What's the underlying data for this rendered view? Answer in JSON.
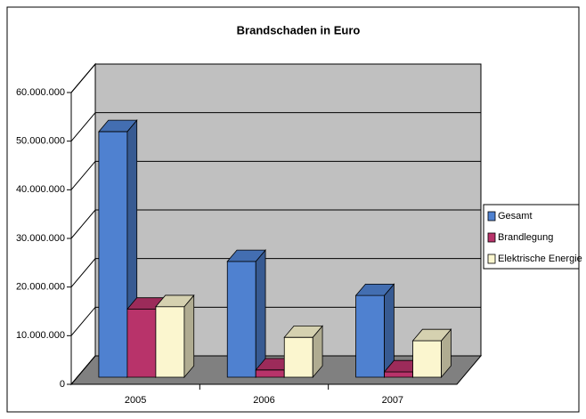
{
  "chart_data": {
    "type": "bar3d",
    "title": "Brandschaden in Euro",
    "categories": [
      "2005",
      "2006",
      "2007"
    ],
    "series": [
      {
        "name": "Gesamt",
        "color": "#4f81d0",
        "values": [
          50500000,
          23800000,
          16800000
        ]
      },
      {
        "name": "Brandlegung",
        "color": "#b8336a",
        "values": [
          14000000,
          1500000,
          1100000
        ]
      },
      {
        "name": "Elektrische Energie",
        "color": "#fbf6cf",
        "values": [
          14500000,
          8200000,
          7500000
        ]
      }
    ],
    "ylim": [
      0,
      60000000
    ],
    "yticks": [
      0,
      {
        "value": 10000000,
        "label": "10.000.000"
      },
      {
        "value": 20000000,
        "label": "20.000.000"
      },
      {
        "value": 30000000,
        "label": "30.000.000"
      },
      {
        "value": 40000000,
        "label": "40.000.000"
      },
      {
        "value": 50000000,
        "label": "50.000.000"
      },
      {
        "value": 60000000,
        "label": "60.000.000"
      }
    ],
    "grid": true,
    "legend": "right"
  }
}
